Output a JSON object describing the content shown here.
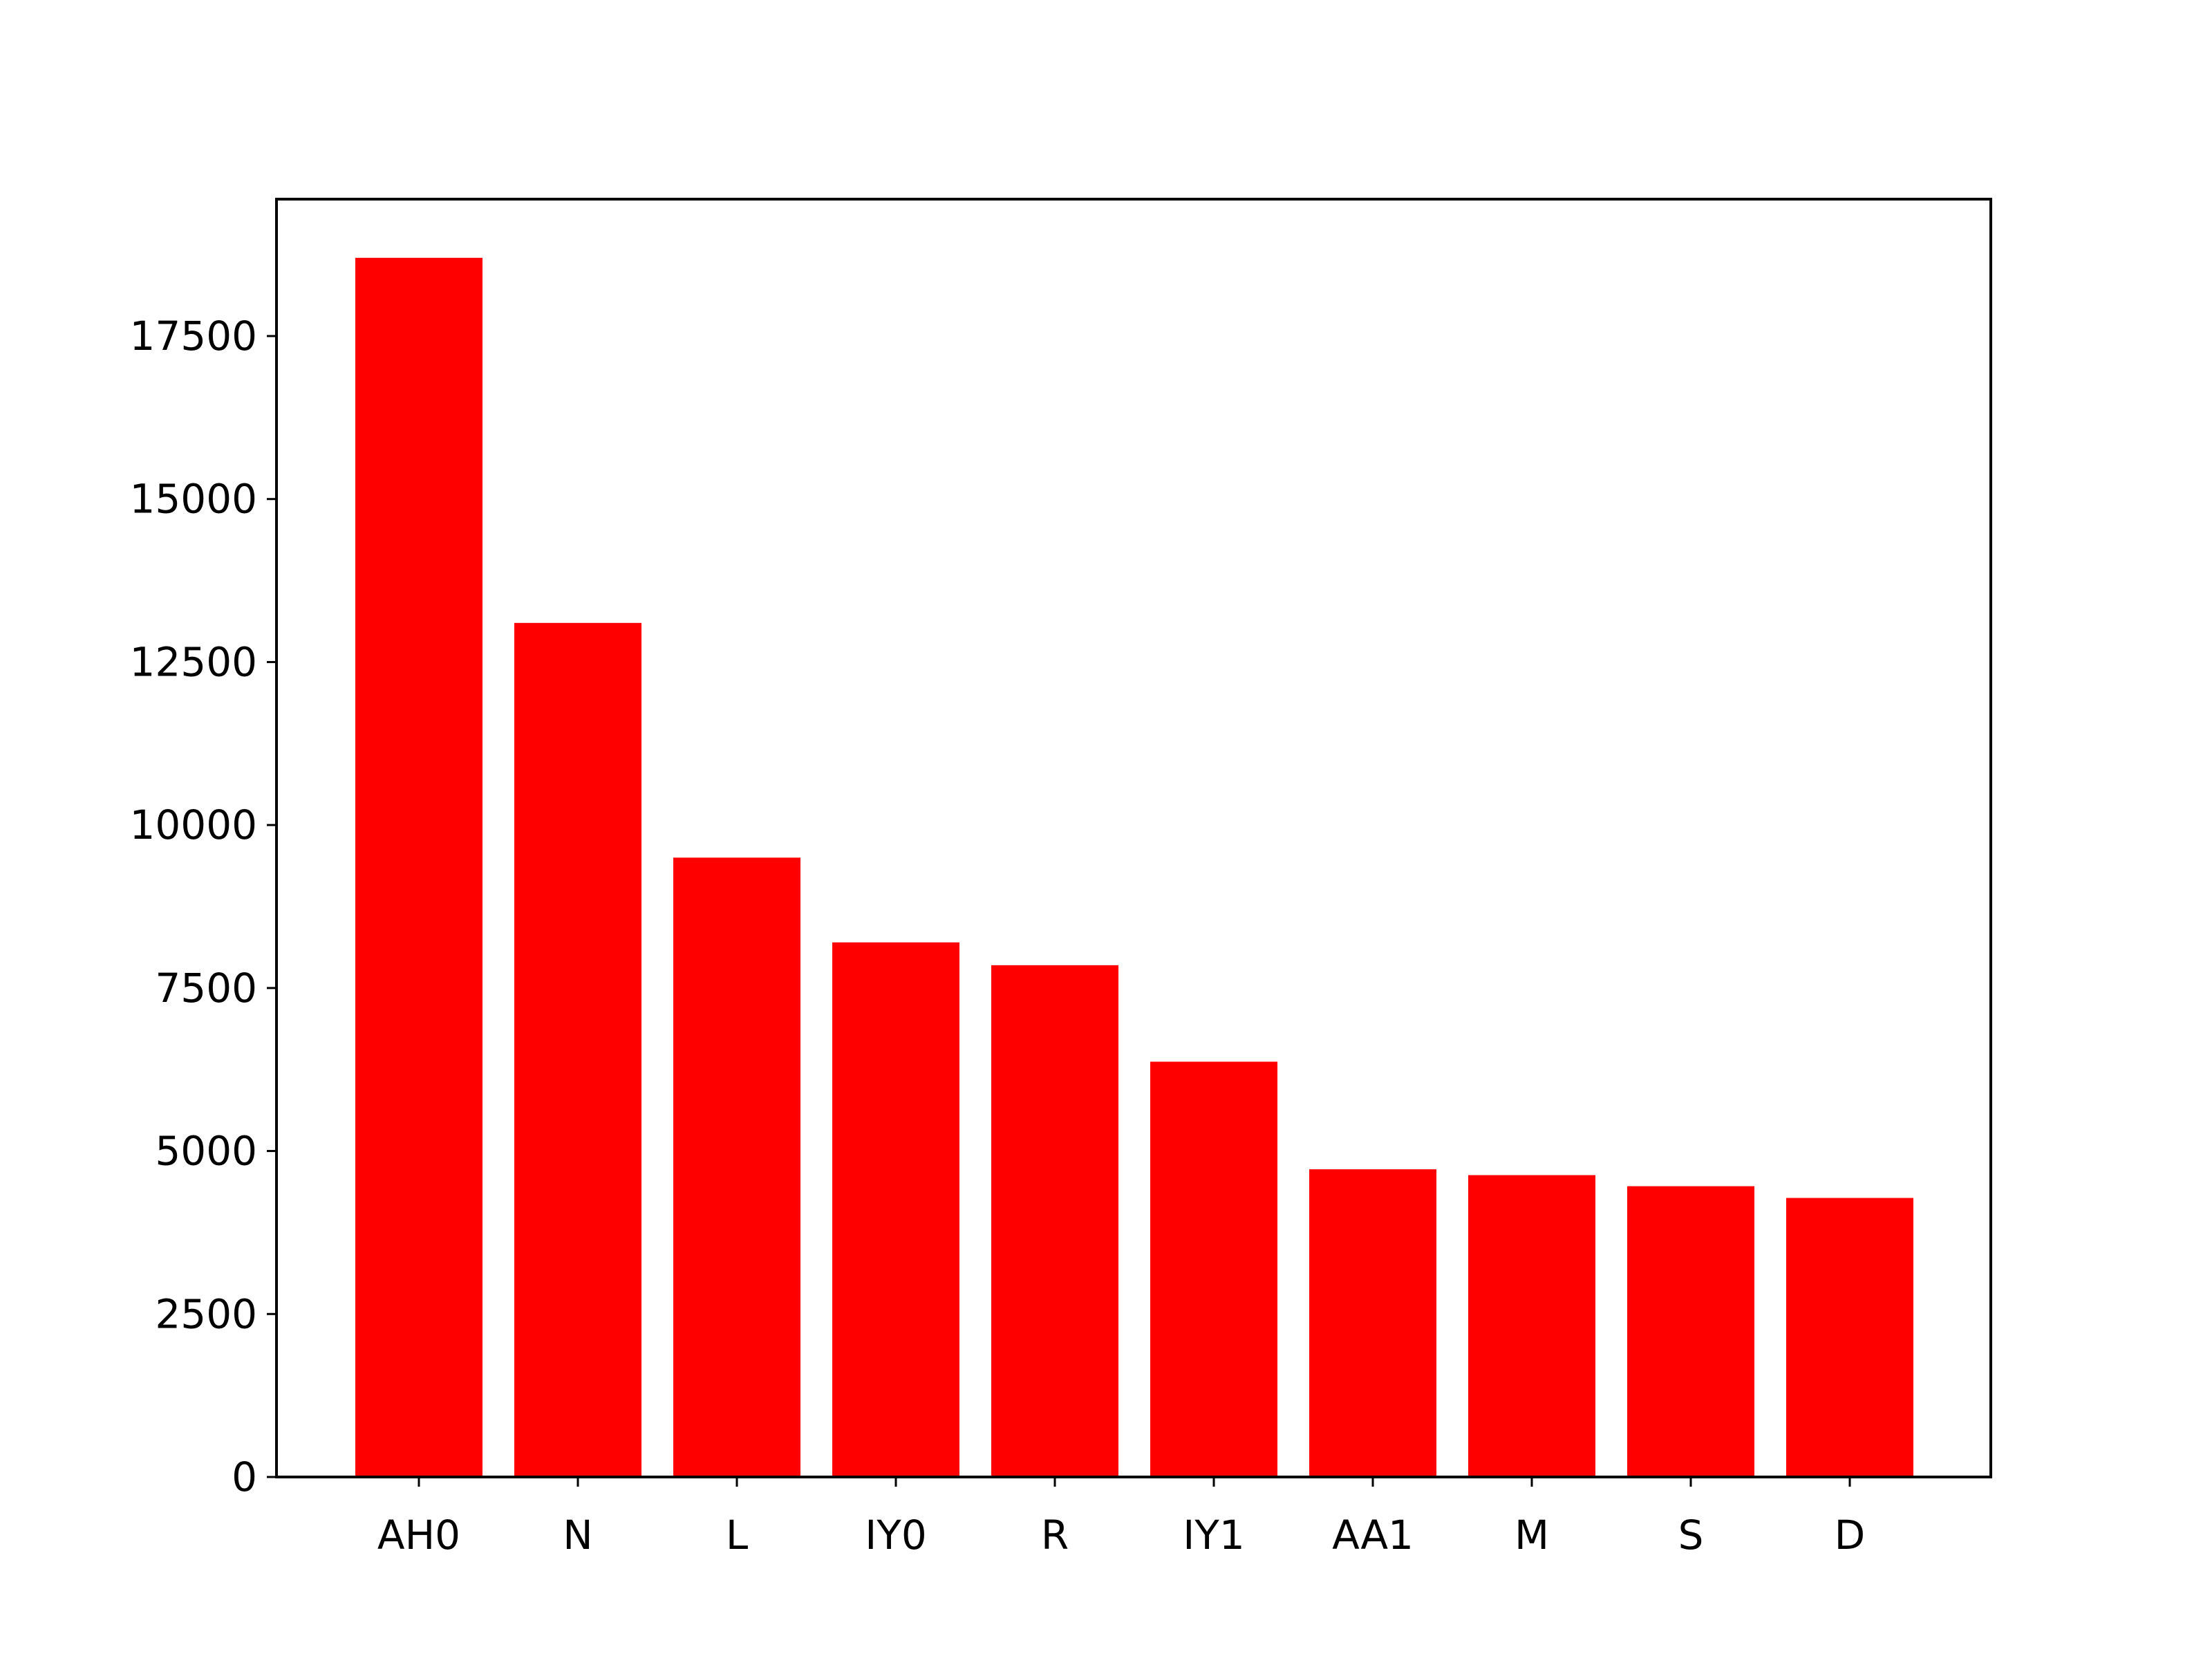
{
  "chart_data": {
    "type": "bar",
    "title": "",
    "xlabel": "",
    "ylabel": "",
    "categories": [
      "AH0",
      "N",
      "L",
      "IY0",
      "R",
      "IY1",
      "AA1",
      "M",
      "S",
      "D"
    ],
    "values": [
      18700,
      13100,
      9500,
      8200,
      7850,
      6370,
      4720,
      4630,
      4460,
      4280
    ],
    "ylim": [
      0,
      19600
    ],
    "yticks": [
      0,
      2500,
      5000,
      7500,
      10000,
      12500,
      15000,
      17500
    ],
    "ytick_labels": [
      "0",
      "2500",
      "5000",
      "7500",
      "10000",
      "12500",
      "15000",
      "17500"
    ],
    "bar_color": "#ff0000",
    "grid": false,
    "legend": "none"
  }
}
